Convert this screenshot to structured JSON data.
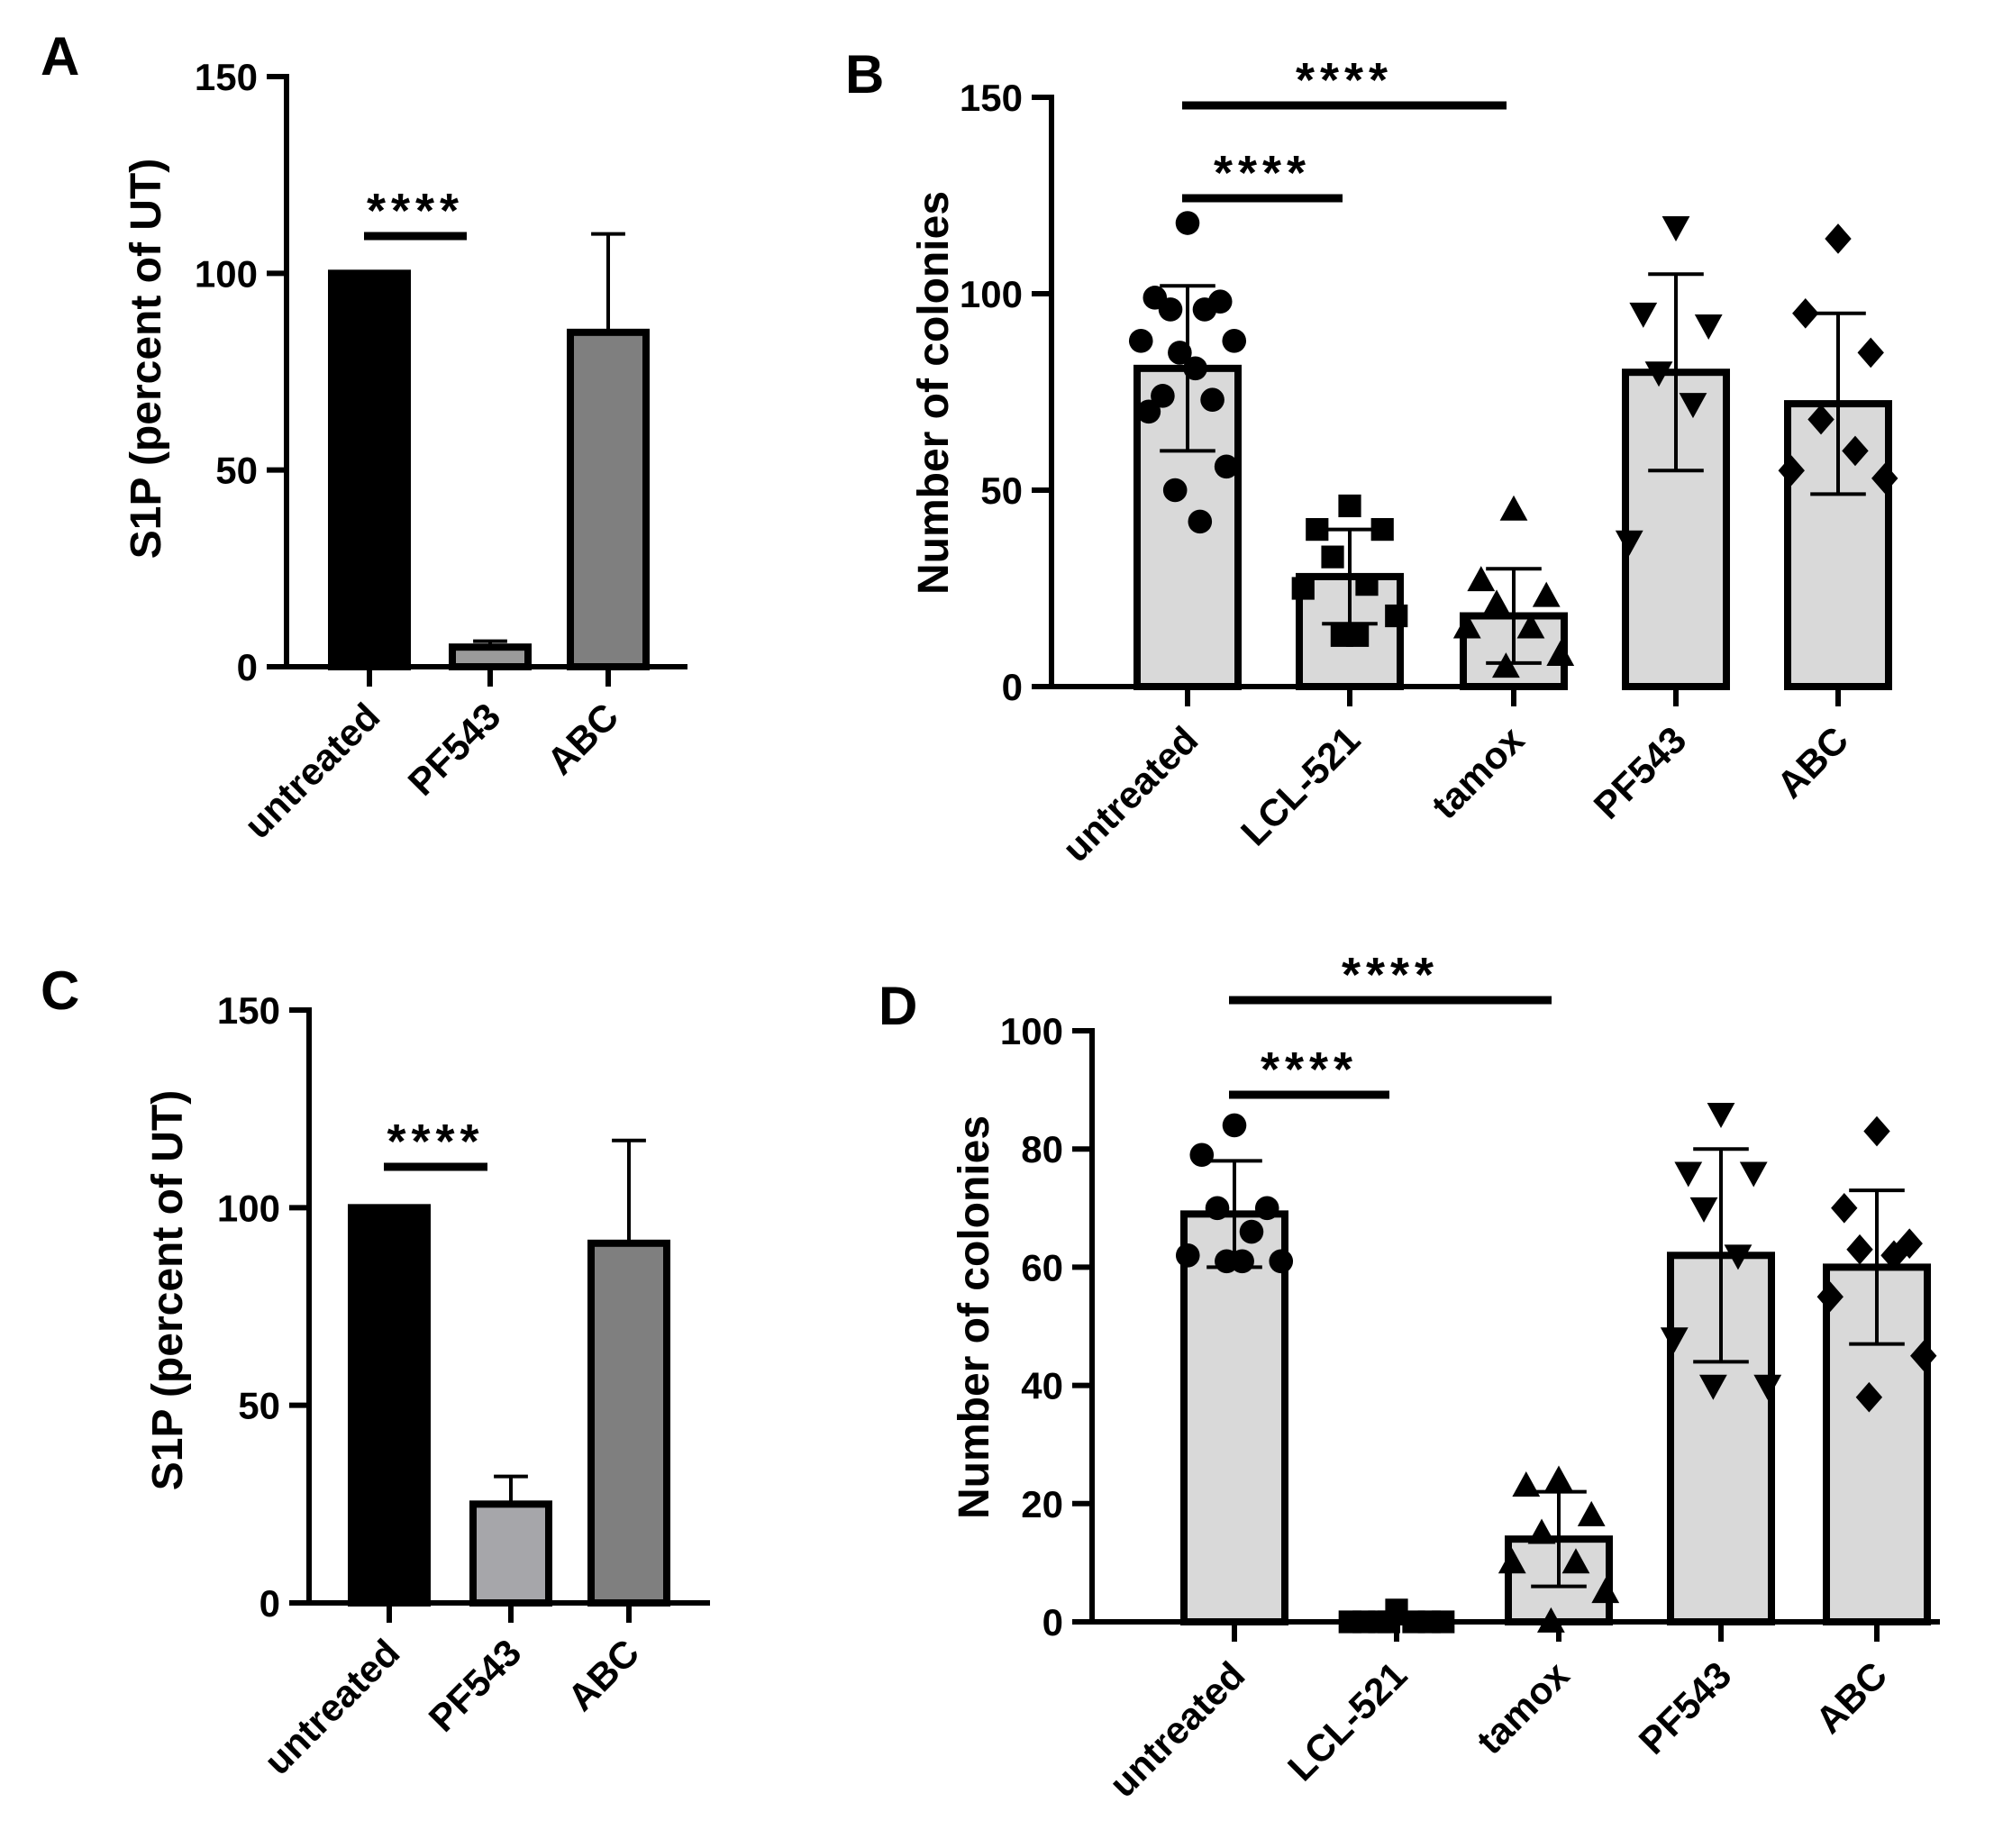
{
  "figure": {
    "panels": [
      "A",
      "B",
      "C",
      "D"
    ]
  },
  "chart_data": [
    {
      "panel": "A",
      "type": "bar",
      "title": "",
      "xlabel": "",
      "ylabel": "S1P  (percent of  UT)",
      "ylim": [
        0,
        150
      ],
      "yticks": [
        0,
        50,
        100,
        150
      ],
      "categories": [
        "untreated",
        "PF543",
        "ABC"
      ],
      "values": [
        100,
        5,
        85
      ],
      "errors": [
        0,
        1.5,
        25
      ],
      "bar_colors": [
        "#000000",
        "#9a9a9a",
        "#7f7f7f"
      ],
      "significance": [
        {
          "from": 0,
          "to": 1,
          "label": "****"
        }
      ]
    },
    {
      "panel": "B",
      "type": "bar",
      "title": "",
      "xlabel": "",
      "ylabel": "Number of colonies",
      "ylim": [
        0,
        150
      ],
      "yticks": [
        0,
        50,
        100,
        150
      ],
      "categories": [
        "untreated",
        "LCL-521",
        "tamox",
        "PF543",
        "ABC"
      ],
      "values": [
        81,
        28,
        18,
        80,
        72
      ],
      "errors": [
        21,
        12,
        12,
        25,
        23
      ],
      "bar_colors": [
        "#d9d9d9",
        "#d9d9d9",
        "#d9d9d9",
        "#d9d9d9",
        "#d9d9d9"
      ],
      "markers": [
        "circle",
        "square",
        "triangle-up",
        "triangle-down",
        "diamond"
      ],
      "points": [
        [
          118,
          99,
          98,
          96,
          96,
          88,
          88,
          85,
          81,
          74,
          73,
          70,
          56,
          50,
          42
        ],
        [
          46,
          40,
          40,
          33,
          26,
          25,
          18,
          13,
          13
        ],
        [
          45,
          27,
          23,
          21,
          15,
          15,
          8,
          5
        ],
        [
          117,
          95,
          92,
          80,
          72,
          37
        ],
        [
          114,
          95,
          85,
          68,
          60,
          55,
          53
        ]
      ],
      "significance": [
        {
          "from": 0,
          "to": 2,
          "label": "****"
        },
        {
          "from": 0,
          "to": 1,
          "label": "****"
        }
      ]
    },
    {
      "panel": "C",
      "type": "bar",
      "title": "",
      "xlabel": "",
      "ylabel": "S1P  (percent of  UT)",
      "ylim": [
        0,
        150
      ],
      "yticks": [
        0,
        50,
        100,
        150
      ],
      "categories": [
        "untreated",
        "PF543",
        "ABC"
      ],
      "values": [
        100,
        25,
        91
      ],
      "errors": [
        0,
        7,
        26
      ],
      "bar_colors": [
        "#000000",
        "#a6a6aa",
        "#7f7f7f"
      ],
      "significance": [
        {
          "from": 0,
          "to": 1,
          "label": "****"
        }
      ]
    },
    {
      "panel": "D",
      "type": "bar",
      "title": "",
      "xlabel": "",
      "ylabel": "Number of colonies",
      "ylim": [
        0,
        100
      ],
      "yticks": [
        0,
        20,
        40,
        60,
        80,
        100
      ],
      "categories": [
        "untreated",
        "LCL-521",
        "tamox",
        "PF543",
        "ABC"
      ],
      "values": [
        69,
        1,
        14,
        62,
        60
      ],
      "errors": [
        9,
        0,
        8,
        18,
        13
      ],
      "bar_colors": [
        "#d9d9d9",
        "#d9d9d9",
        "#d9d9d9",
        "#d9d9d9",
        "#d9d9d9"
      ],
      "markers": [
        "circle",
        "square",
        "triangle-up",
        "triangle-down",
        "diamond"
      ],
      "points": [
        [
          84,
          79,
          70,
          70,
          66,
          62,
          61,
          61,
          61
        ],
        [
          2,
          0,
          0,
          0,
          0,
          0,
          0,
          0
        ],
        [
          24,
          23,
          18,
          15,
          10,
          10,
          5,
          0
        ],
        [
          86,
          76,
          76,
          70,
          62,
          48,
          40,
          40
        ],
        [
          83,
          70,
          64,
          63,
          62,
          55,
          45,
          38
        ]
      ],
      "significance": [
        {
          "from": 0,
          "to": 2,
          "label": "****"
        },
        {
          "from": 0,
          "to": 1,
          "label": "****"
        }
      ]
    }
  ]
}
